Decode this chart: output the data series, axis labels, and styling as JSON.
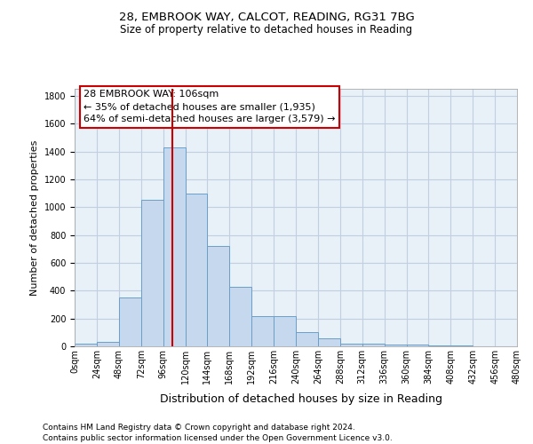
{
  "title_line1": "28, EMBROOK WAY, CALCOT, READING, RG31 7BG",
  "title_line2": "Size of property relative to detached houses in Reading",
  "xlabel": "Distribution of detached houses by size in Reading",
  "ylabel": "Number of detached properties",
  "footer_line1": "Contains HM Land Registry data © Crown copyright and database right 2024.",
  "footer_line2": "Contains public sector information licensed under the Open Government Licence v3.0.",
  "annotation_line1": "28 EMBROOK WAY: 106sqm",
  "annotation_line2": "← 35% of detached houses are smaller (1,935)",
  "annotation_line3": "64% of semi-detached houses are larger (3,579) →",
  "bar_edges": [
    0,
    24,
    48,
    72,
    96,
    120,
    144,
    168,
    192,
    216,
    240,
    264,
    288,
    312,
    336,
    360,
    384,
    408,
    432,
    456
  ],
  "bar_heights": [
    18,
    30,
    350,
    1055,
    1430,
    1095,
    720,
    430,
    220,
    220,
    105,
    55,
    20,
    20,
    10,
    10,
    5,
    5,
    2,
    2
  ],
  "bar_color": "#c5d8ee",
  "bar_edge_color": "#6a9fc8",
  "vline_x": 106,
  "vline_color": "#cc0000",
  "annotation_border_color": "#cc0000",
  "ylim_max": 1850,
  "yticks": [
    0,
    200,
    400,
    600,
    800,
    1000,
    1200,
    1400,
    1600,
    1800
  ],
  "grid_color": "#c0d0e0",
  "plot_bg_color": "#e8f0f8",
  "title1_fontsize": 9.5,
  "title2_fontsize": 8.5,
  "ylabel_fontsize": 8,
  "xlabel_fontsize": 9,
  "tick_fontsize": 7,
  "footer_fontsize": 6.5,
  "annot_fontsize": 8
}
